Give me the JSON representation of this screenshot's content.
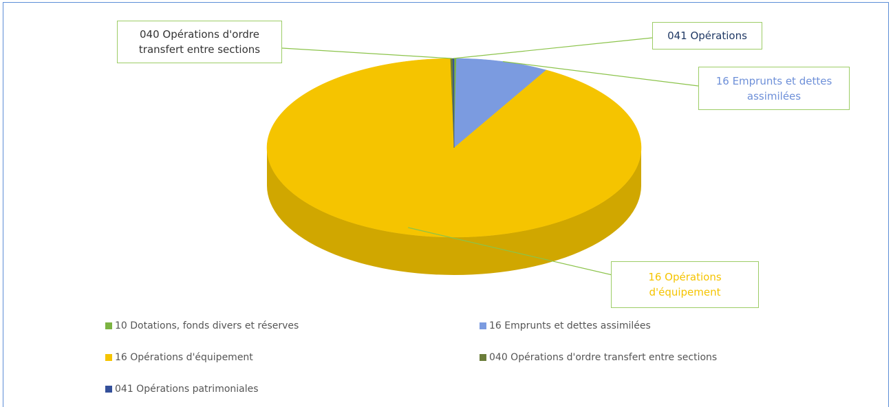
{
  "chart_data": {
    "type": "pie",
    "categories": [
      "10 Dotations, fonds divers et réserves",
      "16 Emprunts et dettes assimilées",
      "16 Opérations d'équipement",
      "040 Opérations d'ordre transfert entre sections",
      "041 Opérations patrimoniales"
    ],
    "values": [
      0.2,
      8,
      91.5,
      0.2,
      0.1
    ],
    "colors": [
      "#7cb342",
      "#7b9be0",
      "#f5c400",
      "#6b7d3a",
      "#34509a"
    ],
    "data_labels": [
      null,
      "16 Emprunts et dettes assimilées",
      "16 Opérations d'équipement",
      "040 Opérations d'ordre transfert entre sections",
      "041 Opérations"
    ]
  }
}
